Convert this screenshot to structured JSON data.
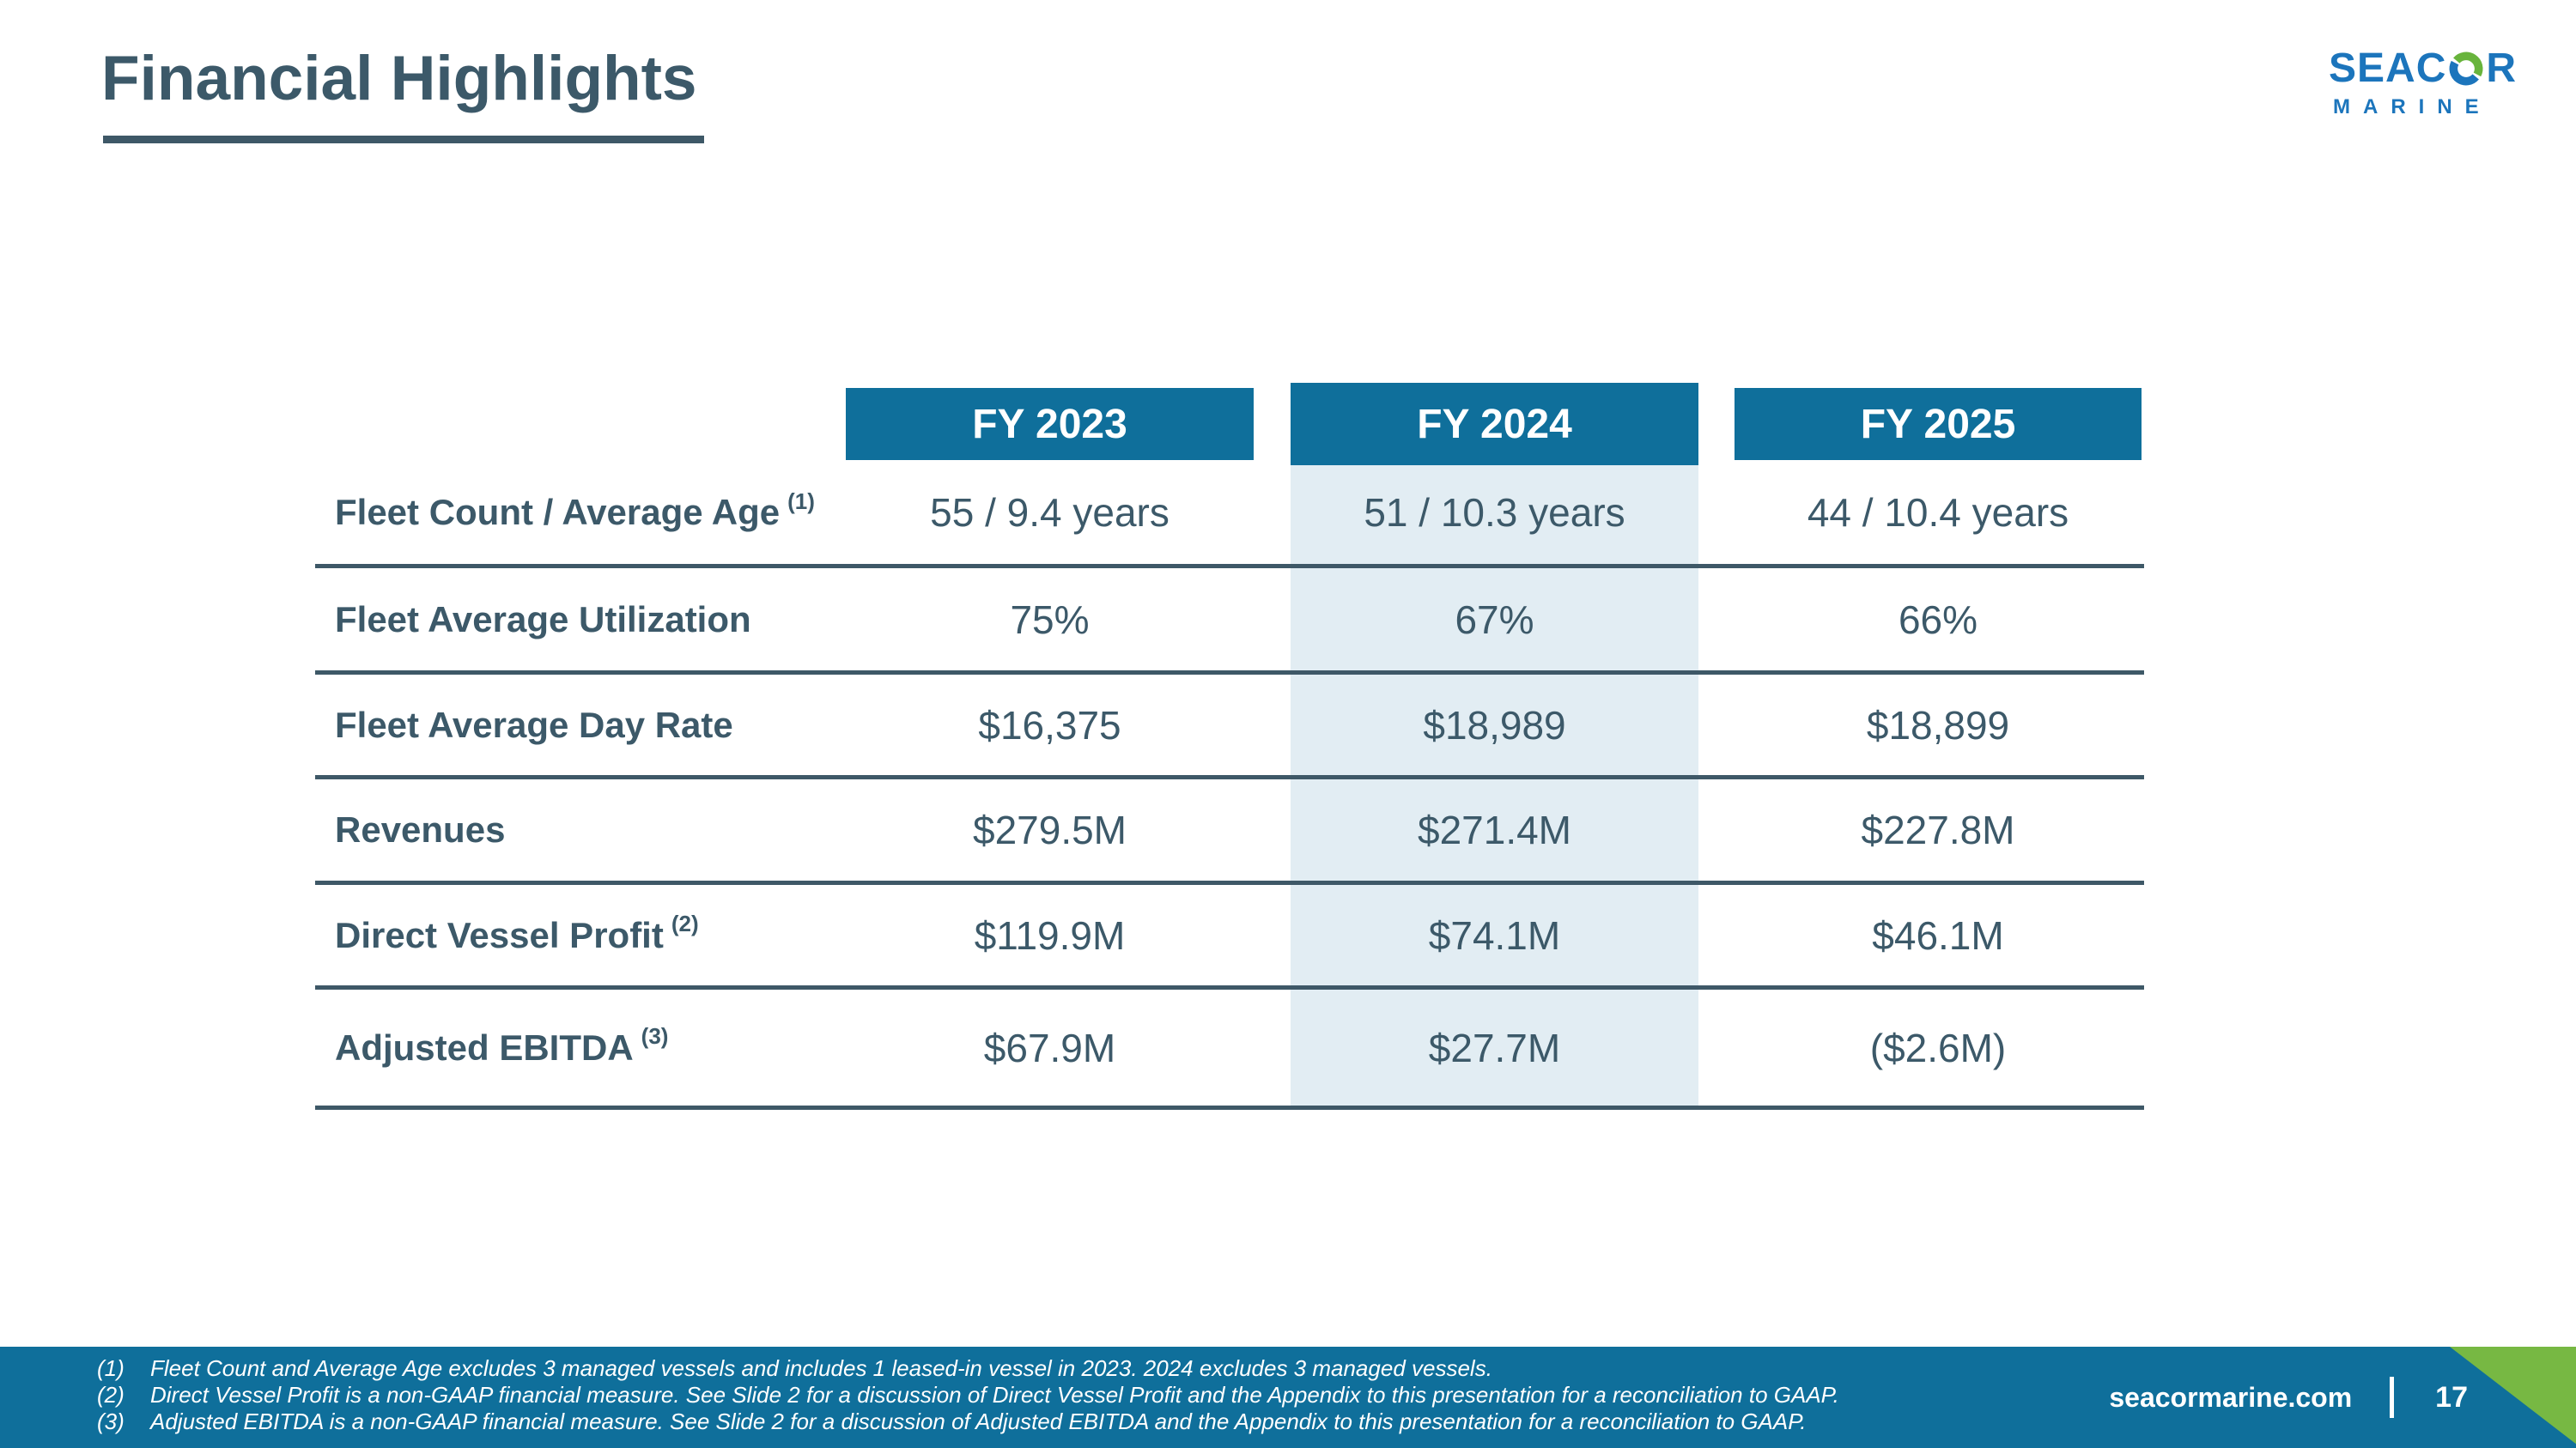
{
  "slide": {
    "title": "Financial Highlights",
    "website": "seacormarine.com",
    "page_number": "17"
  },
  "logo": {
    "brand_top_left": "SEAC",
    "brand_top_right": "R",
    "brand_bottom": "MARINE",
    "swirl_icon": "seacor-swirl-icon"
  },
  "colors": {
    "slate_text": "#3C5969",
    "table_line": "#3E5867",
    "header_blue": "#0F6F9B",
    "highlight_blue": "#E2EDF3",
    "accent_green": "#77B843",
    "logo_blue": "#1C75BC",
    "logo_green": "#68B43C"
  },
  "table": {
    "columns": [
      {
        "label": "FY 2023",
        "highlighted": false
      },
      {
        "label": "FY 2024",
        "highlighted": true
      },
      {
        "label": "FY 2025",
        "highlighted": false
      }
    ],
    "rows": [
      {
        "label": "Fleet Count / Average Age",
        "footnote_ref": "(1)",
        "values": [
          "55 / 9.4 years",
          "51 / 10.3 years",
          "44 / 10.4 years"
        ]
      },
      {
        "label": "Fleet Average Utilization",
        "footnote_ref": "",
        "values": [
          "75%",
          "67%",
          "66%"
        ]
      },
      {
        "label": "Fleet Average Day Rate",
        "footnote_ref": "",
        "values": [
          "$16,375",
          "$18,989",
          "$18,899"
        ]
      },
      {
        "label": "Revenues",
        "footnote_ref": "",
        "values": [
          "$279.5M",
          "$271.4M",
          "$227.8M"
        ]
      },
      {
        "label": "Direct Vessel Profit",
        "footnote_ref": "(2)",
        "values": [
          "$119.9M",
          "$74.1M",
          "$46.1M"
        ]
      },
      {
        "label": "Adjusted EBITDA",
        "footnote_ref": "(3)",
        "values": [
          "$67.9M",
          "$27.7M",
          "($2.6M)"
        ]
      }
    ]
  },
  "footnotes": [
    {
      "num": "(1)",
      "text": "Fleet Count and Average Age excludes 3 managed vessels and includes 1 leased-in vessel in 2023. 2024 excludes 3 managed vessels."
    },
    {
      "num": "(2)",
      "text": "Direct Vessel Profit is a non-GAAP financial measure. See Slide 2 for a discussion of Direct Vessel Profit and the Appendix to this presentation for a reconciliation to GAAP."
    },
    {
      "num": "(3)",
      "text": "Adjusted EBITDA is a non-GAAP financial measure. See Slide 2 for a discussion of Adjusted EBITDA and the Appendix to this presentation for a reconciliation to GAAP."
    }
  ]
}
